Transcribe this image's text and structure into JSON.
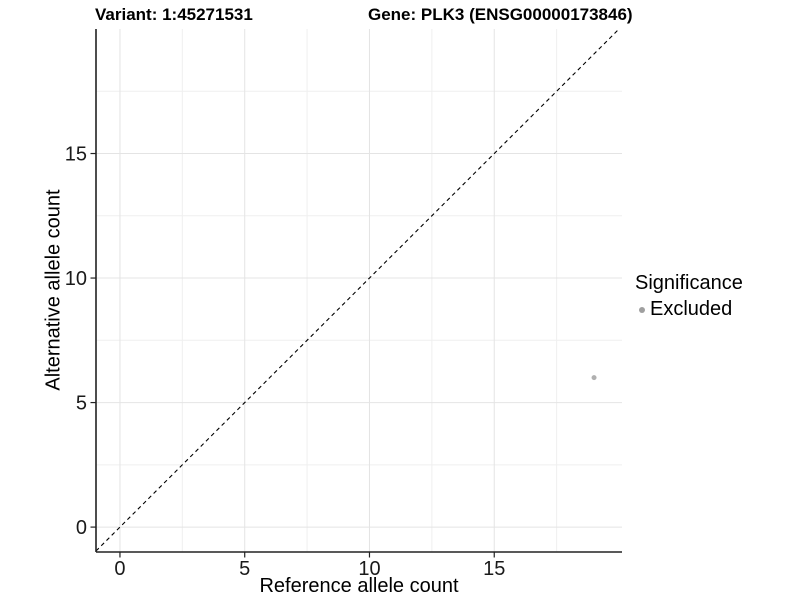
{
  "header": {
    "variant_title": "Variant: 1:45271531",
    "gene_title": "Gene: PLK3 (ENSG00000173846)"
  },
  "legend": {
    "title": "Significance",
    "items": [
      {
        "label": "Excluded",
        "color": "#9f9f9f"
      }
    ]
  },
  "chart_data": {
    "type": "scatter",
    "title": "Variant: 1:45271531   Gene: PLK3 (ENSG00000173846)",
    "xlabel": "Reference allele count",
    "ylabel": "Alternative allele count",
    "xlim": [
      -0.96,
      20.12
    ],
    "ylim": [
      -1.0,
      20.0
    ],
    "x_ticks": [
      0,
      5,
      10,
      15
    ],
    "y_ticks": [
      0,
      5,
      10,
      15
    ],
    "x_minor_gridlines": [
      2.5,
      7.5,
      12.5,
      17.5
    ],
    "y_minor_gridlines": [
      2.5,
      7.5,
      12.5,
      17.5
    ],
    "grid": true,
    "legend_position": "right",
    "series": [
      {
        "name": "Excluded",
        "color": "#b0b0b0",
        "points": [
          [
            19,
            6
          ]
        ]
      }
    ],
    "identity_line": {
      "slope": 1,
      "intercept": 0,
      "style": "dashed",
      "color": "#000000"
    }
  },
  "style": {
    "grid_major_color": "#e4e4e4",
    "grid_minor_color": "#efefef",
    "axis_color": "#222222",
    "text_color": "#000000"
  }
}
